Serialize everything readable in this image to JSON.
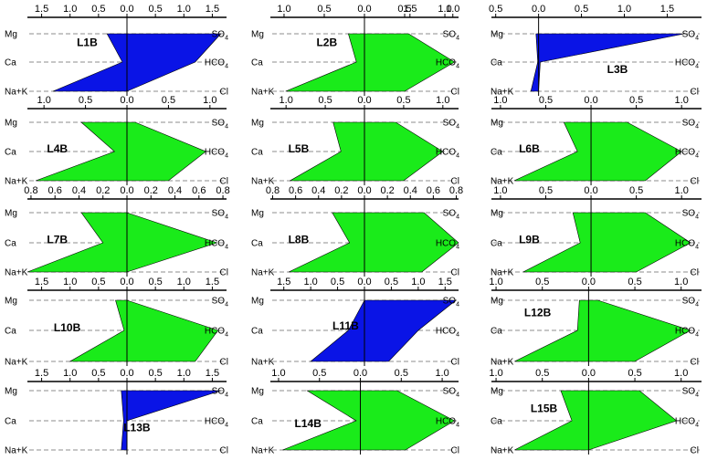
{
  "colors": {
    "green": "#1aeb1a",
    "blue": "#0a14e6",
    "axis": "#000000",
    "guide": "#8c8c8c"
  },
  "ions": {
    "left": [
      "Mg",
      "Ca",
      "Na+K"
    ],
    "right": [
      "SO",
      "HCO",
      "Cl"
    ],
    "right_subscript": "4"
  },
  "chart_data": [
    {
      "type": "stiff",
      "title": "L1B",
      "color": "blue",
      "ticks": [
        "1.5",
        "1.0",
        "0.5",
        "0.0",
        "0.5",
        "1.0",
        "1.5"
      ],
      "tick_values": [
        -1.5,
        -1.0,
        -0.5,
        0.0,
        0.5,
        1.0,
        1.5
      ],
      "range": [
        -1.75,
        1.75
      ],
      "cations": [
        0.35,
        0.08,
        1.3
      ],
      "anions": [
        1.65,
        1.2,
        0.0
      ]
    },
    {
      "type": "stiff",
      "title": "L2B",
      "color": "green",
      "ticks": [
        "1.0",
        "0.5",
        "0.0",
        "0.5",
        "1.0"
      ],
      "tick_values": [
        -1.0,
        -0.5,
        0.0,
        0.5,
        1.0
      ],
      "range": [
        -1.17,
        1.17
      ],
      "cations": [
        0.2,
        0.1,
        0.98
      ],
      "anions": [
        0.55,
        1.12,
        0.5
      ]
    },
    {
      "type": "stiff",
      "title": "L3B",
      "color": "blue",
      "ticks": [
        "1.5",
        "1.0",
        "0.5",
        "0.0",
        "0.5",
        "1.0",
        "1.5"
      ],
      "tick_values": [
        -1.5,
        -1.0,
        -0.5,
        0.0,
        0.5,
        1.0,
        1.5
      ],
      "range": [
        -0.55,
        1.9
      ],
      "cations": [
        0.03,
        0.01,
        0.09
      ],
      "anions": [
        1.7,
        0.02,
        0.0
      ]
    },
    {
      "type": "stiff",
      "title": "L4B",
      "color": "green",
      "ticks": [
        "1.0",
        "0.5",
        "0.0",
        "0.5",
        "1.0"
      ],
      "tick_values": [
        -1.0,
        -0.5,
        0.0,
        0.5,
        1.0
      ],
      "range": [
        -1.2,
        1.2
      ],
      "cations": [
        0.55,
        0.15,
        1.1
      ],
      "anions": [
        0.1,
        0.95,
        0.5
      ]
    },
    {
      "type": "stiff",
      "title": "L5B",
      "color": "green",
      "ticks": [
        "1.0",
        "0.5",
        "0.0",
        "0.5",
        "1.0"
      ],
      "tick_values": [
        -1.0,
        -0.5,
        0.0,
        0.5,
        1.0
      ],
      "range": [
        -1.2,
        1.2
      ],
      "cations": [
        0.4,
        0.3,
        0.95
      ],
      "anions": [
        0.4,
        1.0,
        0.5
      ]
    },
    {
      "type": "stiff",
      "title": "L6B",
      "color": "green",
      "ticks": [
        "1.0",
        "0.5",
        "0.0",
        "0.5",
        "1.0"
      ],
      "tick_values": [
        -1.0,
        -0.5,
        0.0,
        0.5,
        1.0
      ],
      "range": [
        -1.1,
        1.22
      ],
      "cations": [
        0.3,
        0.15,
        0.85
      ],
      "anions": [
        0.4,
        1.0,
        0.6
      ]
    },
    {
      "type": "stiff",
      "title": "L7B",
      "color": "green",
      "ticks": [
        "0.8",
        "0.6",
        "0.4",
        "0.2",
        "0.0",
        "0.2",
        "0.4",
        "0.6",
        "0.8"
      ],
      "tick_values": [
        -0.8,
        -0.6,
        -0.4,
        -0.2,
        0.0,
        0.2,
        0.4,
        0.6,
        0.8
      ],
      "range": [
        -0.83,
        0.83
      ],
      "cations": [
        0.38,
        0.2,
        0.83
      ],
      "anions": [
        0.0,
        0.75,
        0.0
      ]
    },
    {
      "type": "stiff",
      "title": "L8B",
      "color": "green",
      "ticks": [
        "0.8",
        "0.6",
        "0.4",
        "0.2",
        "0.0",
        "0.2",
        "0.4",
        "0.6",
        "0.8"
      ],
      "tick_values": [
        -0.8,
        -0.6,
        -0.4,
        -0.2,
        0.0,
        0.2,
        0.4,
        0.6,
        0.8
      ],
      "range": [
        -0.82,
        0.82
      ],
      "cations": [
        0.28,
        0.13,
        0.66
      ],
      "anions": [
        0.52,
        0.82,
        0.5
      ]
    },
    {
      "type": "stiff",
      "title": "L9B",
      "color": "green",
      "ticks": [
        "1.0",
        "0.5",
        "0.0",
        "0.5",
        "1.0"
      ],
      "tick_values": [
        -1.0,
        -0.5,
        0.0,
        0.5,
        1.0
      ],
      "range": [
        -1.1,
        1.22
      ],
      "cations": [
        0.2,
        0.12,
        0.75
      ],
      "anions": [
        0.6,
        1.1,
        0.5
      ]
    },
    {
      "type": "stiff",
      "title": "L10B",
      "color": "green",
      "ticks": [
        "1.5",
        "1.0",
        "0.5",
        "0.0",
        "0.5",
        "1.0",
        "1.5"
      ],
      "tick_values": [
        -1.5,
        -1.0,
        -0.5,
        0.0,
        0.5,
        1.0,
        1.5
      ],
      "range": [
        -1.75,
        1.75
      ],
      "cations": [
        0.2,
        0.05,
        1.0
      ],
      "anions": [
        0.0,
        1.6,
        1.2
      ]
    },
    {
      "type": "stiff",
      "title": "L11B",
      "color": "blue",
      "ticks": [
        "1.5",
        "1.0",
        "0.5",
        "0.0",
        "0.5",
        "1.0",
        "1.5"
      ],
      "tick_values": [
        -1.5,
        -1.0,
        -0.5,
        0.0,
        0.5,
        1.0,
        1.5
      ],
      "range": [
        -1.75,
        1.75
      ],
      "cations": [
        0.0,
        0.3,
        1.0
      ],
      "anions": [
        1.7,
        1.0,
        0.45
      ]
    },
    {
      "type": "stiff",
      "title": "L12B",
      "color": "green",
      "ticks": [
        "1.0",
        "0.5",
        "0.0",
        "0.5",
        "1.0"
      ],
      "tick_values": [
        -1.0,
        -0.5,
        0.0,
        0.5,
        1.0
      ],
      "range": [
        -1.05,
        1.22
      ],
      "cations": [
        0.1,
        0.12,
        0.8
      ],
      "anions": [
        0.1,
        1.1,
        0.5
      ]
    },
    {
      "type": "stiff",
      "title": "L13B",
      "color": "blue",
      "ticks": [
        "1.5",
        "1.0",
        "0.5",
        "0.0",
        "0.5",
        "1.0",
        "1.5"
      ],
      "tick_values": [
        -1.5,
        -1.0,
        -0.5,
        0.0,
        0.5,
        1.0,
        1.5
      ],
      "range": [
        -1.75,
        1.75
      ],
      "cations": [
        0.1,
        0.06,
        0.1
      ],
      "anions": [
        1.65,
        0.0,
        0.0
      ]
    },
    {
      "type": "stiff",
      "title": "L14B",
      "color": "green",
      "ticks": [
        "1.0",
        "0.5",
        "0.0",
        "0.5",
        "1.0"
      ],
      "tick_values": [
        -1.0,
        -0.5,
        0.0,
        0.5,
        1.0
      ],
      "range": [
        -1.1,
        1.2
      ],
      "cations": [
        0.65,
        0.05,
        0.95
      ],
      "anions": [
        0.45,
        1.15,
        0.55
      ]
    },
    {
      "type": "stiff",
      "title": "L15B",
      "color": "green",
      "ticks": [
        "1.0",
        "0.5",
        "0.0",
        "0.5",
        "1.0"
      ],
      "tick_values": [
        -1.0,
        -0.5,
        0.0,
        0.5,
        1.0
      ],
      "range": [
        -1.05,
        1.22
      ],
      "cations": [
        0.3,
        0.18,
        0.8
      ],
      "anions": [
        0.55,
        0.95,
        0.0
      ]
    }
  ]
}
